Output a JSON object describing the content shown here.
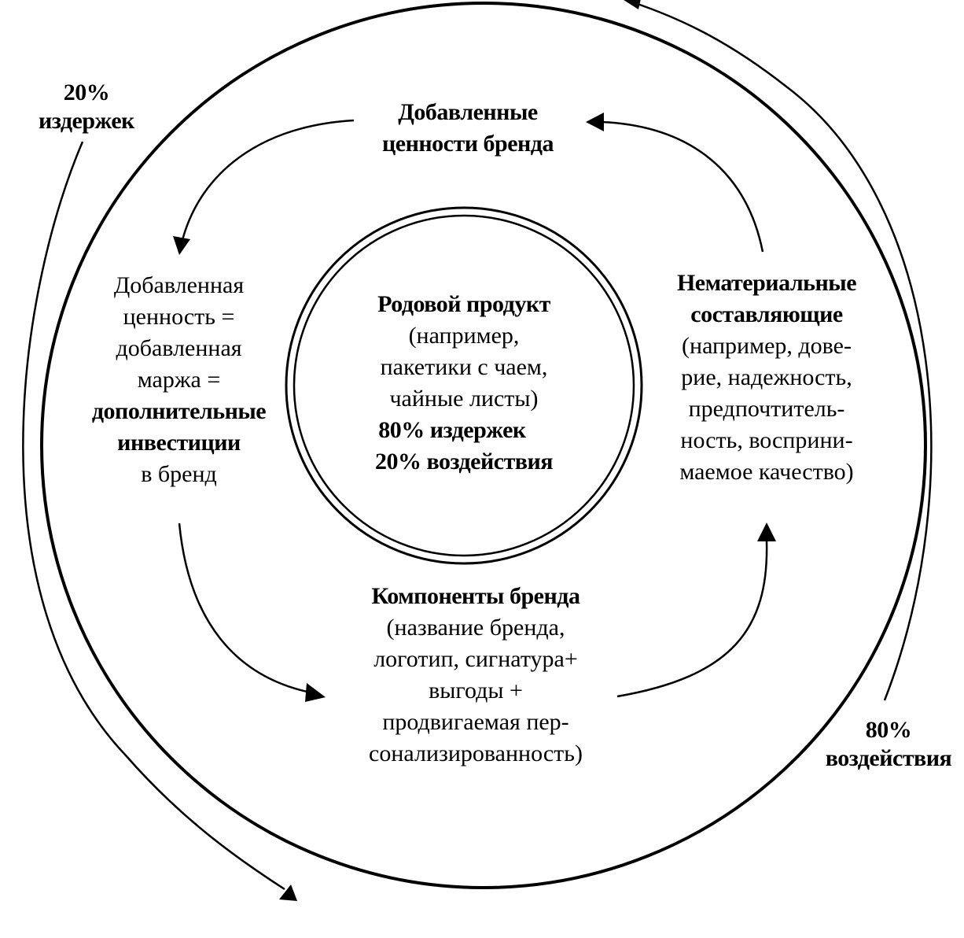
{
  "outer_left_label": {
    "lines": [
      "20%",
      "издержек"
    ]
  },
  "outer_right_label": {
    "lines": [
      "80%",
      "воздействия"
    ]
  },
  "top_node": {
    "lines": [
      "Добавленные",
      "ценности бренда"
    ]
  },
  "center_node": {
    "title": "Родовой продукт",
    "lines": [
      "(например,",
      "пакетики с чаем,",
      "чайные листы)"
    ],
    "stats": [
      "80% издержек",
      "20% воздействия"
    ]
  },
  "left_node": {
    "lines": [
      "Добавленная",
      "ценность =",
      "добавленная",
      "маржа ="
    ],
    "bold_lines": [
      "дополнительные",
      "инвестиции"
    ],
    "last_line": "в бренд"
  },
  "right_node": {
    "bold_lines": [
      "Нематериальные",
      "составляющие"
    ],
    "lines": [
      "(например, дове-",
      "рие, надежность,",
      "предпочтитель-",
      "ность, восприни-",
      "маемое качество)"
    ]
  },
  "bottom_node": {
    "title": "Компоненты бренда",
    "lines": [
      "(название бренда,",
      "логотип, сигнатура+",
      "выгоды +",
      "продвигаемая пер-",
      "сонализированность)"
    ]
  },
  "colors": {
    "ink": "#000000",
    "background": "#ffffff"
  }
}
